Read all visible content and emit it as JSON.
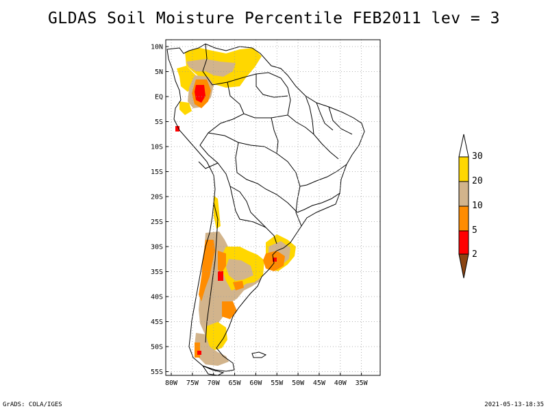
{
  "title": "GLDAS Soil Moisture Percentile FEB2011 lev = 3",
  "footer": {
    "left": "GrADS: COLA/IGES",
    "right": "2021-05-13-18:35"
  },
  "map": {
    "region": "South America",
    "lon_range": [
      -80,
      -32
    ],
    "lat_range": [
      -56,
      12
    ],
    "lat_labels": [
      "10N",
      "5N",
      "EQ",
      "5S",
      "10S",
      "15S",
      "20S",
      "25S",
      "30S",
      "35S",
      "40S",
      "45S",
      "50S",
      "55S"
    ],
    "lat_values": [
      10,
      5,
      0,
      -5,
      -10,
      -15,
      -20,
      -25,
      -30,
      -35,
      -40,
      -45,
      -50,
      -55
    ],
    "lon_labels": [
      "80W",
      "75W",
      "70W",
      "65W",
      "60W",
      "55W",
      "50W",
      "45W",
      "40W",
      "35W"
    ],
    "lon_values": [
      -80,
      -75,
      -70,
      -65,
      -60,
      -55,
      -50,
      -45,
      -40,
      -35
    ],
    "grid": "dotted"
  },
  "colorbar": {
    "labels": [
      "2",
      "5",
      "10",
      "20",
      "30"
    ],
    "colors": {
      "lt2": "#8b4513",
      "c2_5": "#ff0000",
      "c5_10": "#ff8c00",
      "c10_20": "#d2b48c",
      "c20_30": "#ffd700",
      "gt30": "#ffffff"
    }
  },
  "colors": {
    "yellow": "#ffd700",
    "tan": "#d2b48c",
    "orange": "#ff8c00",
    "red": "#ff0000",
    "brown": "#8b4513"
  }
}
